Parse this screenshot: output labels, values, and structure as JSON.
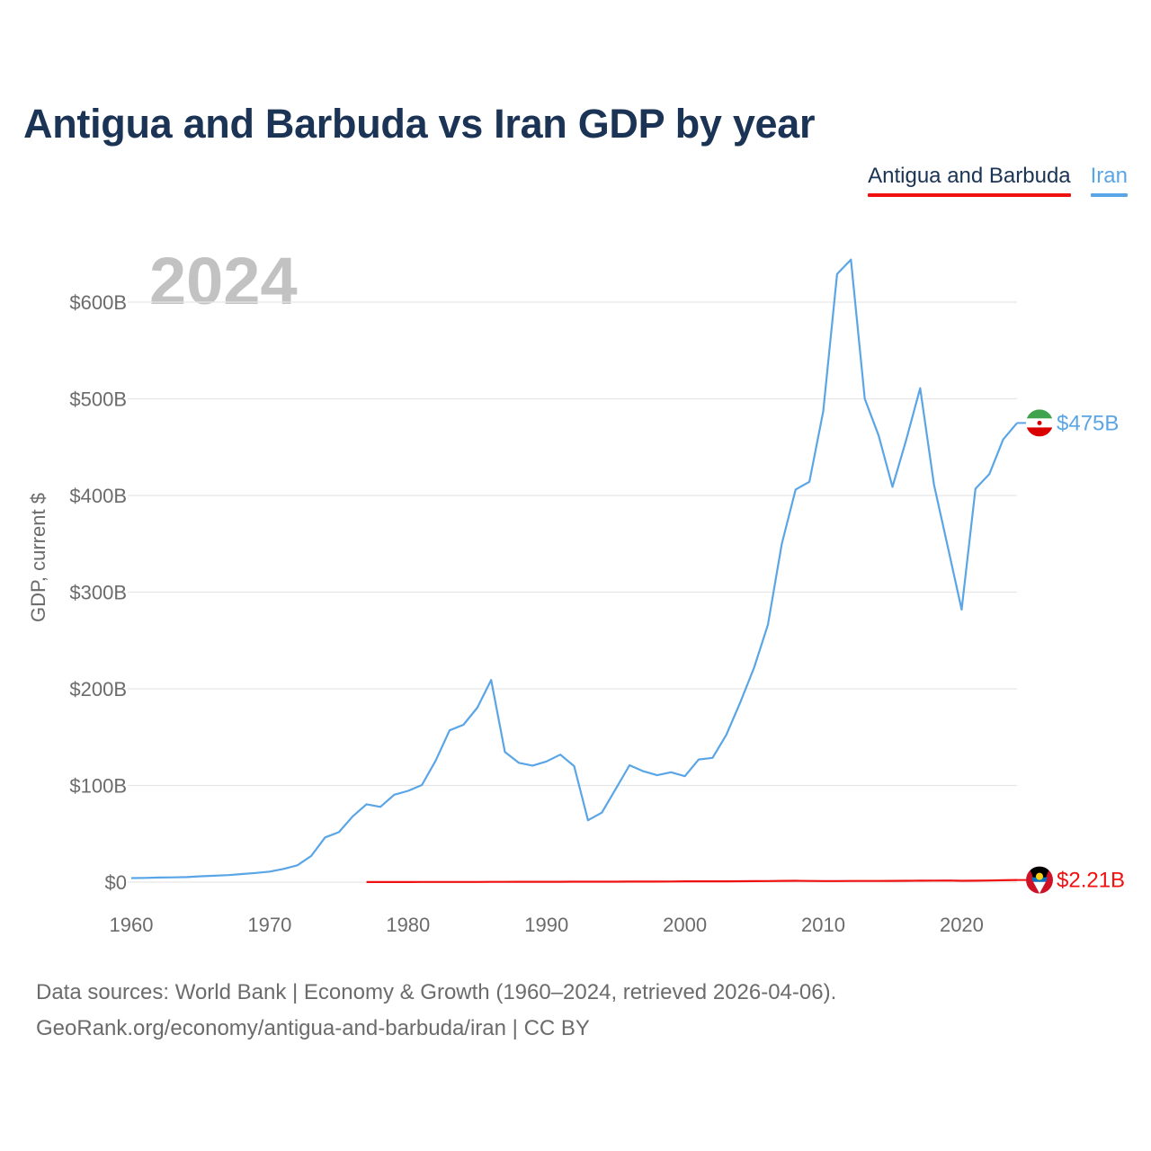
{
  "chart_data": {
    "type": "line",
    "title": "Antigua and Barbuda vs Iran GDP by year",
    "year_label": "2024",
    "ylabel": "GDP, current $",
    "xlabel": "",
    "xlim": [
      1960,
      2024
    ],
    "ylim": [
      0,
      650
    ],
    "yunit": "B",
    "yticks": [
      0,
      100,
      200,
      300,
      400,
      500,
      600
    ],
    "ytick_labels": [
      "$0",
      "$100B",
      "$200B",
      "$300B",
      "$400B",
      "$500B",
      "$600B"
    ],
    "xticks": [
      1960,
      1970,
      1980,
      1990,
      2000,
      2010,
      2020
    ],
    "xtick_labels": [
      "1960",
      "1970",
      "1980",
      "1990",
      "2000",
      "2010",
      "2020"
    ],
    "grid": true,
    "legend_position": "top-right",
    "series": [
      {
        "name": "Antigua and Barbuda",
        "color": "#f01010",
        "end_label": "$2.21B",
        "x": [
          1977,
          1978,
          1979,
          1980,
          1981,
          1982,
          1983,
          1984,
          1985,
          1986,
          1987,
          1988,
          1989,
          1990,
          1991,
          1992,
          1993,
          1994,
          1995,
          1996,
          1997,
          1998,
          1999,
          2000,
          2001,
          2002,
          2003,
          2004,
          2005,
          2006,
          2007,
          2008,
          2009,
          2010,
          2011,
          2012,
          2013,
          2014,
          2015,
          2016,
          2017,
          2018,
          2019,
          2020,
          2021,
          2022,
          2023,
          2024
        ],
        "values": [
          0.08,
          0.09,
          0.11,
          0.13,
          0.15,
          0.17,
          0.18,
          0.19,
          0.21,
          0.25,
          0.29,
          0.33,
          0.37,
          0.4,
          0.41,
          0.43,
          0.44,
          0.47,
          0.48,
          0.53,
          0.57,
          0.6,
          0.64,
          0.83,
          0.8,
          0.81,
          0.85,
          0.92,
          1.0,
          1.15,
          1.3,
          1.37,
          1.22,
          1.15,
          1.14,
          1.21,
          1.19,
          1.25,
          1.33,
          1.44,
          1.47,
          1.61,
          1.69,
          1.41,
          1.47,
          1.7,
          1.95,
          2.21
        ]
      },
      {
        "name": "Iran",
        "color": "#5aa5e6",
        "end_label": "$475B",
        "x": [
          1960,
          1961,
          1962,
          1963,
          1964,
          1965,
          1966,
          1967,
          1968,
          1969,
          1970,
          1971,
          1972,
          1973,
          1974,
          1975,
          1976,
          1977,
          1978,
          1979,
          1980,
          1981,
          1982,
          1983,
          1984,
          1985,
          1986,
          1987,
          1988,
          1989,
          1990,
          1991,
          1992,
          1993,
          1994,
          1995,
          1996,
          1997,
          1998,
          1999,
          2000,
          2001,
          2002,
          2003,
          2004,
          2005,
          2006,
          2007,
          2008,
          2009,
          2010,
          2011,
          2012,
          2013,
          2014,
          2015,
          2016,
          2017,
          2018,
          2019,
          2020,
          2021,
          2022,
          2023,
          2024
        ],
        "values": [
          4.2,
          4.4,
          4.7,
          4.9,
          5.2,
          6.0,
          6.6,
          7.3,
          8.4,
          9.5,
          10.9,
          13.7,
          17.4,
          27.1,
          46.2,
          51.7,
          68.1,
          80.6,
          77.9,
          90.4,
          94.4,
          100.5,
          125.9,
          157.0,
          162.8,
          180.5,
          209.1,
          134.6,
          123.4,
          120.6,
          124.8,
          131.9,
          120.0,
          64.0,
          71.9,
          96.4,
          120.9,
          114.7,
          110.6,
          113.7,
          109.6,
          126.9,
          128.6,
          152.5,
          185.9,
          221.9,
          266.3,
          349.9,
          406.1,
          414.1,
          487.1,
          629.0,
          644.0,
          500.0,
          462.0,
          408.9,
          458.0,
          511.0,
          411.0,
          347.0,
          282.0,
          407.0,
          422.0,
          458.0,
          475.0
        ]
      }
    ]
  },
  "footer": {
    "line1": "Data sources: World Bank | Economy & Growth (1960–2024, retrieved 2026-04-06).",
    "line2": "GeoRank.org/economy/antigua-and-barbuda/iran | CC BY"
  }
}
